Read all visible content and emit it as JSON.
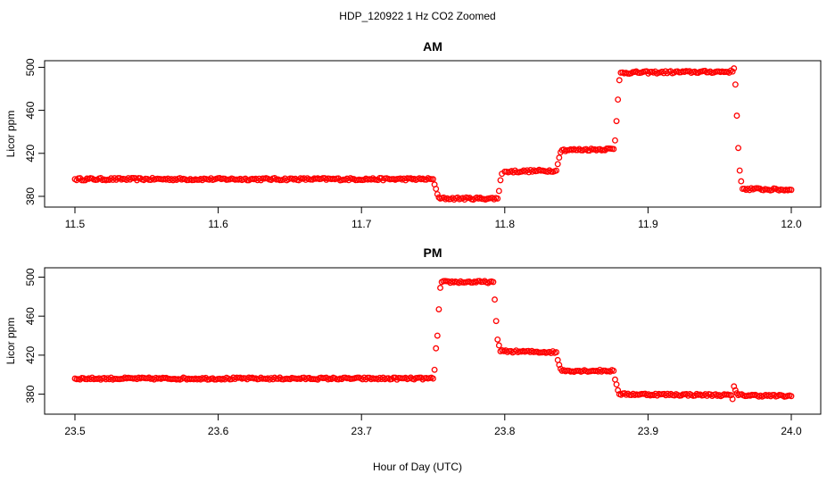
{
  "figure_title": "HDP_120922  1 Hz CO2 Zoomed",
  "xlabel": "Hour of Day (UTC)",
  "marker_color": "#ff0000",
  "chart_data": [
    {
      "type": "scatter",
      "title": "AM",
      "xlabel": "",
      "ylabel": "Licor ppm",
      "xlim": [
        11.5,
        12.0
      ],
      "ylim": [
        375,
        502
      ],
      "xticks": [
        11.5,
        11.6,
        11.7,
        11.8,
        11.9,
        12.0
      ],
      "xtick_labels": [
        "11.5",
        "11.6",
        "11.7",
        "11.8",
        "11.9",
        "12.0"
      ],
      "yticks": [
        380,
        420,
        460,
        500
      ],
      "ytick_labels": [
        "380",
        "420",
        "460",
        "500"
      ],
      "series": [
        {
          "x": [
            11.5,
            11.75,
            11.751,
            11.752,
            11.753,
            11.754,
            11.755,
            11.795,
            11.796,
            11.797,
            11.798,
            11.8,
            11.836,
            11.837,
            11.838,
            11.839,
            11.84,
            11.876,
            11.877,
            11.878,
            11.879,
            11.88,
            11.881,
            11.959,
            11.96,
            11.961,
            11.962,
            11.963,
            11.964,
            11.965,
            11.966,
            12.0
          ],
          "y": [
            396,
            396,
            391,
            387,
            382,
            379,
            378,
            378,
            385,
            395,
            401,
            403,
            404,
            410,
            416,
            421,
            423,
            424,
            432,
            450,
            470,
            488,
            495,
            496,
            499,
            484,
            455,
            425,
            404,
            394,
            387,
            386
          ]
        }
      ]
    },
    {
      "type": "scatter",
      "title": "PM",
      "xlabel": "",
      "ylabel": "Licor ppm",
      "xlim": [
        23.5,
        24.0
      ],
      "ylim": [
        365,
        505
      ],
      "xticks": [
        23.5,
        23.6,
        23.7,
        23.8,
        23.9,
        24.0
      ],
      "xtick_labels": [
        "23.5",
        "23.6",
        "23.7",
        "23.8",
        "23.9",
        "24.0"
      ],
      "yticks": [
        380,
        420,
        460,
        500
      ],
      "ytick_labels": [
        "380",
        "420",
        "460",
        "500"
      ],
      "series": [
        {
          "x": [
            23.5,
            23.75,
            23.751,
            23.752,
            23.753,
            23.754,
            23.755,
            23.756,
            23.792,
            23.793,
            23.794,
            23.795,
            23.796,
            23.797,
            23.836,
            23.837,
            23.838,
            23.839,
            23.84,
            23.876,
            23.877,
            23.878,
            23.879,
            23.88,
            23.958,
            23.959,
            23.96,
            23.961,
            23.962,
            23.963,
            24.0
          ],
          "y": [
            396,
            396,
            405,
            427,
            440,
            467,
            489,
            495,
            495,
            477,
            455,
            436,
            430,
            424,
            423,
            415,
            410,
            406,
            404,
            404,
            395,
            390,
            384,
            380,
            379,
            375,
            388,
            384,
            381,
            379,
            378
          ]
        }
      ]
    }
  ]
}
